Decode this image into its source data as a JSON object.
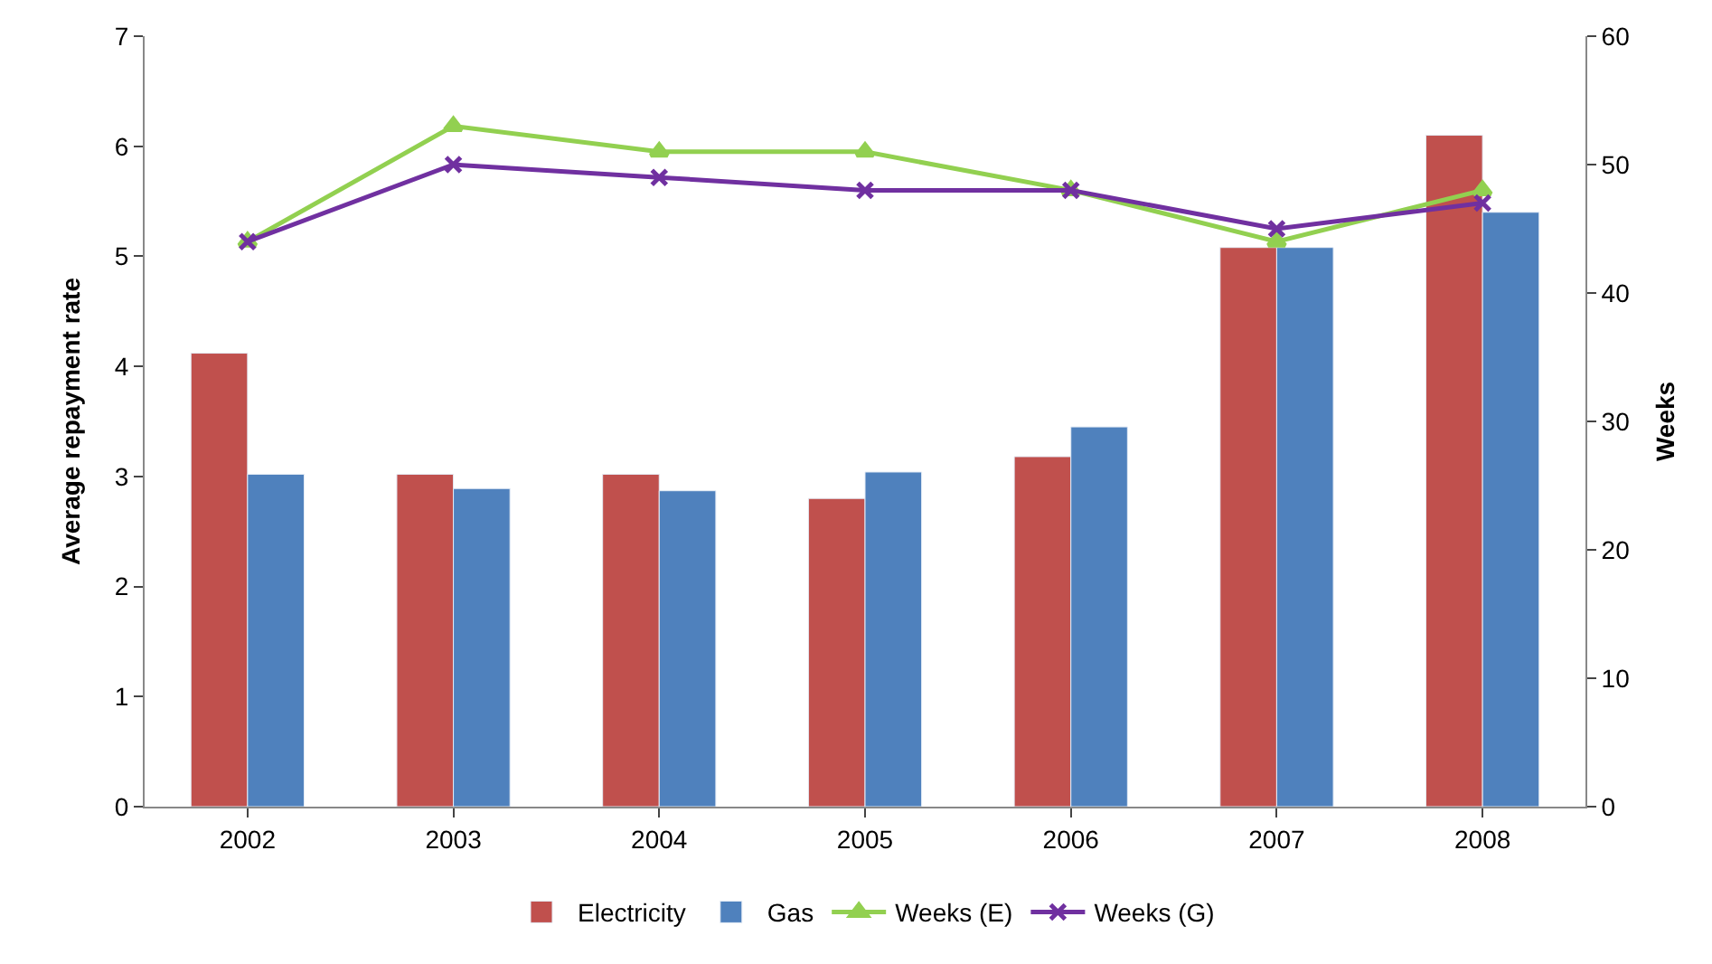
{
  "chart_data": {
    "type": "bar",
    "ylabel": "Average repayment rate",
    "y2label": "Weeks",
    "categories": [
      "2002",
      "2003",
      "2004",
      "2005",
      "2006",
      "2007",
      "2008"
    ],
    "series": [
      {
        "name": "Electricity",
        "color": "#c0504d",
        "values": [
          4.12,
          3.02,
          3.02,
          2.8,
          3.18,
          5.08,
          6.1
        ]
      },
      {
        "name": "Gas",
        "color": "#4f81bd",
        "values": [
          3.02,
          2.89,
          2.87,
          3.04,
          3.45,
          5.08,
          5.4
        ]
      },
      {
        "name": "Weeks (E)",
        "type": "line",
        "axis": "y2",
        "marker": "triangle",
        "color": "#92d050",
        "values": [
          44,
          53,
          51,
          51,
          48,
          44,
          48
        ]
      },
      {
        "name": "Weeks (G)",
        "type": "line",
        "axis": "y2",
        "marker": "cross",
        "color": "#7030a0",
        "values": [
          44,
          50,
          49,
          48,
          48,
          45,
          47
        ]
      }
    ],
    "ylim": [
      0,
      7
    ],
    "yticks": [
      0,
      1,
      2,
      3,
      4,
      5,
      6,
      7
    ],
    "y2lim": [
      0,
      60
    ],
    "y2ticks": [
      0,
      10,
      20,
      30,
      40,
      50,
      60
    ],
    "legend": "bottom"
  }
}
